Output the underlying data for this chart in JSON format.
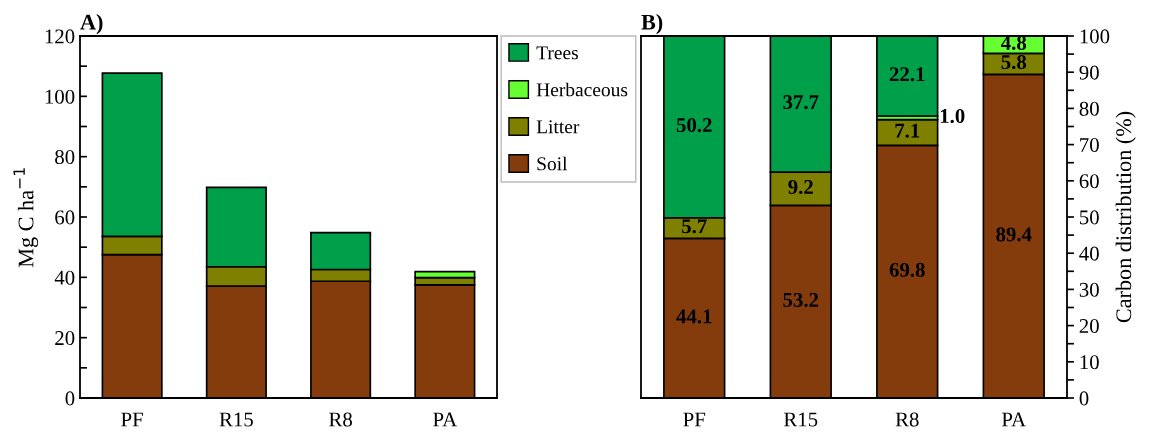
{
  "chart_data": [
    {
      "type": "bar",
      "title": "A)",
      "ylabel": "Mg C ha$^{−1}$",
      "stacked": true,
      "legend": "right",
      "categories": [
        "PF",
        "R15",
        "R8",
        "PA"
      ],
      "ylim": [
        0,
        120
      ],
      "yticks": [
        0,
        {
          "value": 10,
          "label": null
        },
        20,
        {
          "value": 30,
          "label": null
        },
        40,
        {
          "value": 50,
          "label": null
        },
        60,
        {
          "value": 70,
          "label": null
        },
        80,
        {
          "value": 90,
          "label": null
        },
        100,
        {
          "value": 110,
          "label": null
        },
        120
      ],
      "series": [
        {
          "name": "Soil",
          "color": "#843c0c",
          "values": [
            47.5,
            37.1,
            38.7,
            37.5
          ]
        },
        {
          "name": "Litter",
          "color": "#7f7f00",
          "values": [
            6.1,
            6.4,
            3.9,
            2.4
          ]
        },
        {
          "name": "Herbaceous",
          "color": "#66ff33",
          "values": [
            null,
            null,
            null,
            2.0
          ]
        },
        {
          "name": "Trees",
          "color": "#00a04a",
          "values": [
            54.1,
            26.3,
            12.2,
            null
          ]
        }
      ]
    },
    {
      "type": "bar",
      "title": "B)",
      "y2label": "Carbon distribution (%)",
      "stacked": true,
      "categories": [
        "PF",
        "R15",
        "R8",
        "PA"
      ],
      "y2lim": [
        0,
        100
      ],
      "y2ticks": [
        0,
        {
          "value": 5,
          "label": null
        },
        10,
        {
          "value": 15,
          "label": null
        },
        20,
        {
          "value": 25,
          "label": null
        },
        30,
        {
          "value": 35,
          "label": null
        },
        40,
        {
          "value": 45,
          "label": null
        },
        50,
        {
          "value": 55,
          "label": null
        },
        60,
        {
          "value": 65,
          "label": null
        },
        70,
        {
          "value": 75,
          "label": null
        },
        80,
        {
          "value": 85,
          "label": null
        },
        90,
        {
          "value": 95,
          "label": null
        },
        100
      ],
      "series": [
        {
          "axis": "y2",
          "color": "#843c0c",
          "values": [
            44.1,
            53.2,
            69.8,
            89.4
          ],
          "value_labels": [
            "44.1",
            "53.2",
            "69.8",
            "89.4"
          ]
        },
        {
          "axis": "y2",
          "color": "#7f7f00",
          "values": [
            5.7,
            9.2,
            7.1,
            5.8
          ],
          "value_labels": [
            "5.7",
            "9.2",
            "7.1",
            "5.8"
          ]
        },
        {
          "axis": "y2",
          "color": "#66ff33",
          "values": [
            null,
            null,
            1.0,
            4.8
          ],
          "value_labels": [
            null,
            null,
            "1.0",
            "4.8"
          ]
        },
        {
          "axis": "y2",
          "color": "#00a04a",
          "values": [
            50.2,
            37.7,
            22.1,
            null
          ],
          "value_labels": [
            "50.2",
            "37.7",
            "22.1",
            null
          ]
        }
      ]
    }
  ]
}
